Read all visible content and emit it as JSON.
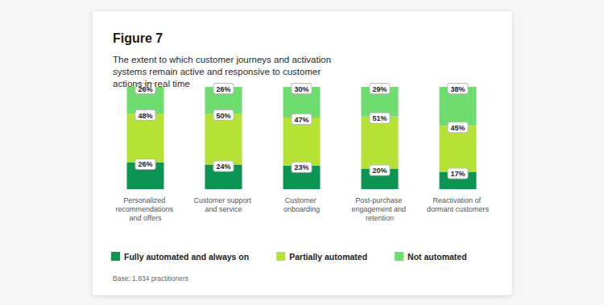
{
  "chart_data": {
    "type": "bar",
    "title": "Figure 7",
    "subtitle": "The extent to which customer journeys and activation systems remain active and responsive to customer actions in real time",
    "annotations": [
      "Base: 1,834 practitioners"
    ],
    "categories": [
      "Personalized recommendations and offers",
      "Customer support and service",
      "Customer onboarding",
      "Post-purchase engagement and retention",
      "Reactivation of dormant customers"
    ],
    "series": [
      {
        "name": "Fully automated and always on",
        "color": "#0c9452",
        "values": [
          26,
          24,
          23,
          20,
          17
        ],
        "value_labels": [
          "26%",
          "24%",
          "23%",
          "20%",
          "17%"
        ]
      },
      {
        "name": "Partially automated",
        "color": "#b6e236",
        "values": [
          48,
          50,
          47,
          51,
          45
        ],
        "value_labels": [
          "48%",
          "50%",
          "47%",
          "51%",
          "45%"
        ]
      },
      {
        "name": "Not automated",
        "color": "#6fdc70",
        "values": [
          26,
          26,
          30,
          29,
          38
        ],
        "value_labels": [
          "26%",
          "26%",
          "30%",
          "29%",
          "38%"
        ]
      }
    ],
    "ylim": [
      0,
      100
    ],
    "stacked": true,
    "data_labels": true,
    "tick_labels": "x",
    "legend": "lower left",
    "grid": false
  }
}
